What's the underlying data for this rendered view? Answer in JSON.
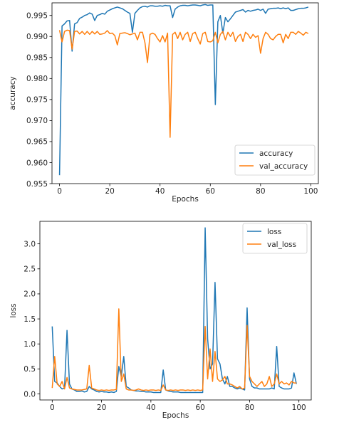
{
  "chart_data": [
    {
      "type": "line",
      "xlabel": "Epochs",
      "ylabel": "accuracy",
      "xlim": [
        -3,
        103
      ],
      "ylim": [
        0.955,
        0.998
      ],
      "xticks": [
        0,
        20,
        40,
        60,
        80,
        100
      ],
      "xtick_labels": [
        "0",
        "20",
        "40",
        "60",
        "80",
        "100"
      ],
      "yticks": [
        0.955,
        0.96,
        0.965,
        0.97,
        0.975,
        0.98,
        0.985,
        0.99,
        0.995
      ],
      "ytick_labels": [
        "0.955",
        "0.960",
        "0.965",
        "0.970",
        "0.975",
        "0.980",
        "0.985",
        "0.990",
        "0.995"
      ],
      "grid": false,
      "legend_position": "lower-right",
      "series": [
        {
          "name": "accuracy",
          "color": "#1f77b4",
          "x": [
            0,
            1,
            2,
            3,
            4,
            5,
            6,
            7,
            8,
            9,
            10,
            11,
            12,
            13,
            14,
            15,
            16,
            17,
            18,
            19,
            20,
            21,
            22,
            23,
            24,
            25,
            26,
            27,
            28,
            29,
            30,
            31,
            32,
            33,
            34,
            35,
            36,
            37,
            38,
            39,
            40,
            41,
            42,
            43,
            44,
            45,
            46,
            47,
            48,
            49,
            50,
            51,
            52,
            53,
            54,
            55,
            56,
            57,
            58,
            59,
            60,
            61,
            62,
            63,
            64,
            65,
            66,
            67,
            68,
            69,
            70,
            71,
            72,
            73,
            74,
            75,
            76,
            77,
            78,
            79,
            80,
            81,
            82,
            83,
            84,
            85,
            86,
            87,
            88,
            89,
            90,
            91,
            92,
            93,
            94,
            95,
            96,
            97,
            98,
            99
          ],
          "y": [
            0.957,
            0.9925,
            0.993,
            0.9937,
            0.9938,
            0.9865,
            0.993,
            0.9933,
            0.9943,
            0.9946,
            0.995,
            0.9952,
            0.9956,
            0.9953,
            0.9938,
            0.995,
            0.9952,
            0.9955,
            0.9953,
            0.996,
            0.9963,
            0.9966,
            0.9968,
            0.997,
            0.9968,
            0.9966,
            0.9962,
            0.9958,
            0.9955,
            0.991,
            0.9955,
            0.9962,
            0.9968,
            0.9971,
            0.9972,
            0.997,
            0.9973,
            0.9973,
            0.9972,
            0.9972,
            0.9973,
            0.9972,
            0.9974,
            0.9973,
            0.9973,
            0.9945,
            0.9965,
            0.997,
            0.9973,
            0.9974,
            0.9974,
            0.9973,
            0.9974,
            0.9975,
            0.9975,
            0.9974,
            0.9973,
            0.9975,
            0.9976,
            0.9974,
            0.9975,
            0.9975,
            0.9738,
            0.9935,
            0.995,
            0.9908,
            0.9945,
            0.9935,
            0.9942,
            0.995,
            0.9958,
            0.996,
            0.9962,
            0.9964,
            0.9958,
            0.9962,
            0.996,
            0.9962,
            0.9963,
            0.9965,
            0.9962,
            0.9965,
            0.9955,
            0.9965,
            0.9966,
            0.9967,
            0.9967,
            0.9968,
            0.9966,
            0.9968,
            0.9966,
            0.9968,
            0.9962,
            0.9962,
            0.9964,
            0.9966,
            0.9967,
            0.9967,
            0.9968,
            0.997
          ]
        },
        {
          "name": "val_accuracy",
          "color": "#ff7f0e",
          "x": [
            0,
            1,
            2,
            3,
            4,
            5,
            6,
            7,
            8,
            9,
            10,
            11,
            12,
            13,
            14,
            15,
            16,
            17,
            18,
            19,
            20,
            21,
            22,
            23,
            24,
            25,
            26,
            27,
            28,
            29,
            30,
            31,
            32,
            33,
            34,
            35,
            36,
            37,
            38,
            39,
            40,
            41,
            42,
            43,
            44,
            45,
            46,
            47,
            48,
            49,
            50,
            51,
            52,
            53,
            54,
            55,
            56,
            57,
            58,
            59,
            60,
            61,
            62,
            63,
            64,
            65,
            66,
            67,
            68,
            69,
            70,
            71,
            72,
            73,
            74,
            75,
            76,
            77,
            78,
            79,
            80,
            81,
            82,
            83,
            84,
            85,
            86,
            87,
            88,
            89,
            90,
            91,
            92,
            93,
            94,
            95,
            96,
            97,
            98,
            99
          ],
          "y": [
            0.9915,
            0.9887,
            0.9912,
            0.9915,
            0.9914,
            0.987,
            0.9912,
            0.9913,
            0.9906,
            0.9912,
            0.9905,
            0.9912,
            0.9905,
            0.9912,
            0.9906,
            0.9912,
            0.9905,
            0.9906,
            0.9908,
            0.9914,
            0.9907,
            0.9908,
            0.9902,
            0.988,
            0.9907,
            0.9908,
            0.9909,
            0.9907,
            0.9904,
            0.9906,
            0.9908,
            0.9892,
            0.991,
            0.991,
            0.9885,
            0.9838,
            0.9905,
            0.9908,
            0.9905,
            0.9895,
            0.9887,
            0.9902,
            0.9887,
            0.9908,
            0.966,
            0.9905,
            0.991,
            0.9895,
            0.991,
            0.9892,
            0.9905,
            0.991,
            0.9888,
            0.9907,
            0.991,
            0.9895,
            0.9882,
            0.9907,
            0.991,
            0.9888,
            0.9887,
            0.989,
            0.991,
            0.9885,
            0.9905,
            0.9912,
            0.9892,
            0.991,
            0.99,
            0.991,
            0.9888,
            0.99,
            0.9905,
            0.9888,
            0.991,
            0.9905,
            0.9895,
            0.9905,
            0.9898,
            0.9902,
            0.986,
            0.9895,
            0.991,
            0.9905,
            0.9895,
            0.9892,
            0.99,
            0.9905,
            0.9905,
            0.9885,
            0.9905,
            0.9895,
            0.991,
            0.991,
            0.9905,
            0.9912,
            0.9908,
            0.9903,
            0.991,
            0.9907
          ]
        }
      ]
    },
    {
      "type": "line",
      "xlabel": "Epochs",
      "ylabel": "loss",
      "xlim": [
        -5,
        105
      ],
      "ylim": [
        -0.12,
        3.45
      ],
      "xticks": [
        0,
        20,
        40,
        60,
        80,
        100
      ],
      "xtick_labels": [
        "0",
        "20",
        "40",
        "60",
        "80",
        "100"
      ],
      "yticks": [
        0.0,
        0.5,
        1.0,
        1.5,
        2.0,
        2.5,
        3.0
      ],
      "ytick_labels": [
        "0.0",
        "0.5",
        "1.0",
        "1.5",
        "2.0",
        "2.5",
        "3.0"
      ],
      "grid": false,
      "legend_position": "upper-right",
      "series": [
        {
          "name": "loss",
          "color": "#1f77b4",
          "x": [
            0,
            1,
            2,
            3,
            4,
            5,
            6,
            7,
            8,
            9,
            10,
            11,
            12,
            13,
            14,
            15,
            16,
            17,
            18,
            19,
            20,
            21,
            22,
            23,
            24,
            25,
            26,
            27,
            28,
            29,
            30,
            31,
            32,
            33,
            34,
            35,
            36,
            37,
            38,
            39,
            40,
            41,
            42,
            43,
            44,
            45,
            46,
            47,
            48,
            49,
            50,
            51,
            52,
            53,
            54,
            55,
            56,
            57,
            58,
            59,
            60,
            61,
            62,
            63,
            64,
            65,
            66,
            67,
            68,
            69,
            70,
            71,
            72,
            73,
            74,
            75,
            76,
            77,
            78,
            79,
            80,
            81,
            82,
            83,
            84,
            85,
            86,
            87,
            88,
            89,
            90,
            91,
            92,
            93,
            94,
            95,
            96,
            97,
            98,
            99
          ],
          "y": [
            1.35,
            0.25,
            0.22,
            0.15,
            0.1,
            0.12,
            1.27,
            0.2,
            0.1,
            0.08,
            0.05,
            0.05,
            0.06,
            0.04,
            0.05,
            0.15,
            0.1,
            0.08,
            0.05,
            0.04,
            0.05,
            0.04,
            0.04,
            0.03,
            0.04,
            0.03,
            0.05,
            0.55,
            0.35,
            0.75,
            0.15,
            0.12,
            0.08,
            0.07,
            0.06,
            0.06,
            0.05,
            0.05,
            0.04,
            0.04,
            0.04,
            0.03,
            0.03,
            0.03,
            0.03,
            0.48,
            0.08,
            0.06,
            0.05,
            0.04,
            0.04,
            0.04,
            0.03,
            0.03,
            0.03,
            0.03,
            0.03,
            0.03,
            0.03,
            0.03,
            0.03,
            0.03,
            3.32,
            1.1,
            0.5,
            0.6,
            2.23,
            0.7,
            0.6,
            0.3,
            0.2,
            0.35,
            0.15,
            0.15,
            0.12,
            0.1,
            0.12,
            0.1,
            0.08,
            1.72,
            0.3,
            0.15,
            0.12,
            0.12,
            0.1,
            0.1,
            0.1,
            0.1,
            0.1,
            0.12,
            0.1,
            0.95,
            0.15,
            0.12,
            0.1,
            0.1,
            0.1,
            0.12,
            0.42,
            0.2
          ]
        },
        {
          "name": "val_loss",
          "color": "#ff7f0e",
          "x": [
            0,
            1,
            2,
            3,
            4,
            5,
            6,
            7,
            8,
            9,
            10,
            11,
            12,
            13,
            14,
            15,
            16,
            17,
            18,
            19,
            20,
            21,
            22,
            23,
            24,
            25,
            26,
            27,
            28,
            29,
            30,
            31,
            32,
            33,
            34,
            35,
            36,
            37,
            38,
            39,
            40,
            41,
            42,
            43,
            44,
            45,
            46,
            47,
            48,
            49,
            50,
            51,
            52,
            53,
            54,
            55,
            56,
            57,
            58,
            59,
            60,
            61,
            62,
            63,
            64,
            65,
            66,
            67,
            68,
            69,
            70,
            71,
            72,
            73,
            74,
            75,
            76,
            77,
            78,
            79,
            80,
            81,
            82,
            83,
            84,
            85,
            86,
            87,
            88,
            89,
            90,
            91,
            92,
            93,
            94,
            95,
            96,
            97,
            98,
            99
          ],
          "y": [
            0.12,
            0.75,
            0.2,
            0.15,
            0.25,
            0.1,
            0.33,
            0.12,
            0.1,
            0.09,
            0.08,
            0.08,
            0.08,
            0.09,
            0.1,
            0.57,
            0.12,
            0.1,
            0.08,
            0.07,
            0.08,
            0.07,
            0.08,
            0.07,
            0.08,
            0.08,
            0.09,
            1.7,
            0.25,
            0.4,
            0.1,
            0.08,
            0.08,
            0.07,
            0.08,
            0.1,
            0.08,
            0.07,
            0.08,
            0.07,
            0.08,
            0.08,
            0.07,
            0.08,
            0.07,
            0.18,
            0.08,
            0.07,
            0.08,
            0.07,
            0.08,
            0.07,
            0.08,
            0.08,
            0.07,
            0.08,
            0.07,
            0.08,
            0.07,
            0.08,
            0.07,
            0.08,
            1.35,
            0.3,
            0.9,
            0.25,
            0.85,
            0.3,
            0.25,
            0.28,
            0.35,
            0.2,
            0.2,
            0.18,
            0.15,
            0.12,
            0.15,
            0.1,
            0.12,
            1.37,
            0.35,
            0.25,
            0.2,
            0.15,
            0.2,
            0.25,
            0.15,
            0.2,
            0.35,
            0.15,
            0.2,
            0.4,
            0.2,
            0.25,
            0.2,
            0.22,
            0.18,
            0.25,
            0.22,
            0.22
          ]
        }
      ]
    }
  ]
}
